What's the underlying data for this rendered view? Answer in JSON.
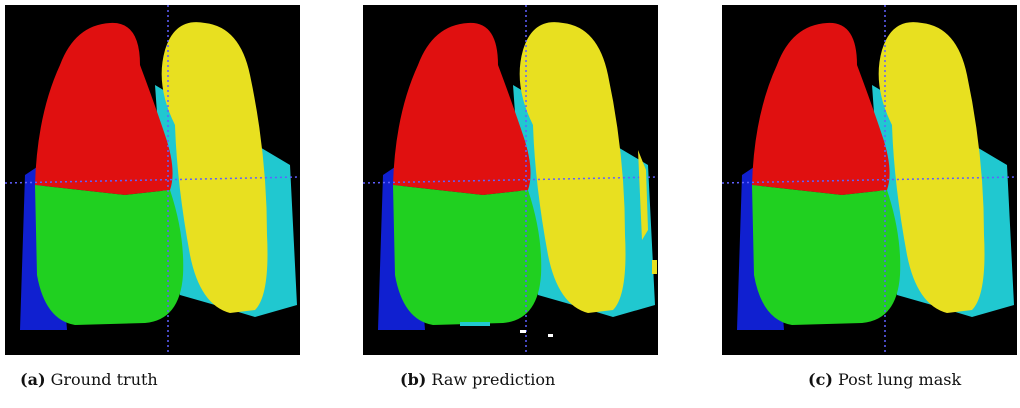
{
  "figure": {
    "panels": [
      {
        "label": "(a)",
        "caption": "Ground truth"
      },
      {
        "label": "(b)",
        "caption": "Raw prediction"
      },
      {
        "label": "(c)",
        "caption": "Post lung mask"
      }
    ]
  }
}
